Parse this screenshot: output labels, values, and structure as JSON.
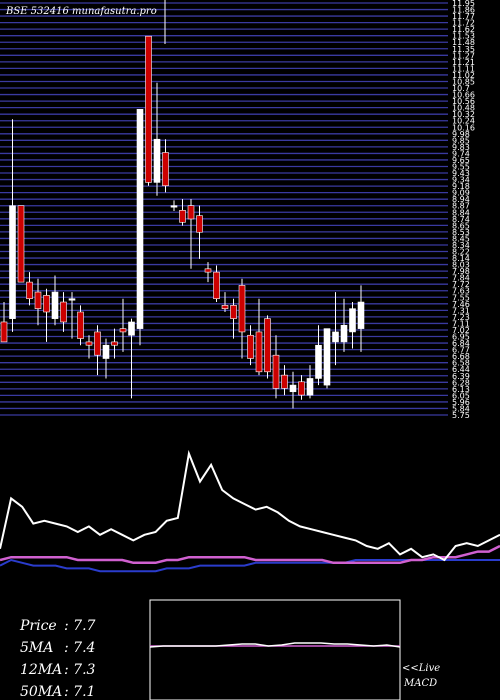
{
  "header": {
    "title": "BSE 532416  munafasutra.pro"
  },
  "chart_data": [
    {
      "type": "candlestick",
      "title": "BSE 532416  munafasutra.pro",
      "ylim": [
        5.75,
        11.95
      ],
      "price_tick_labels": [
        "11.95",
        "11.86",
        "11.77",
        "11.72",
        "11.62",
        "11.53",
        "11.48",
        "11.35",
        "11.27",
        "11.21",
        "11.11",
        "11.02",
        "10.85",
        "10.7",
        "10.66",
        "10.56",
        "10.48",
        "10.32",
        "10.24",
        "10.16",
        "9.98",
        "9.85",
        "9.83",
        "9.74",
        "9.65",
        "9.55",
        "9.43",
        "9.34",
        "9.18",
        "9.09",
        "8.94",
        "8.87",
        "8.84",
        "8.74",
        "8.65",
        "8.53",
        "8.45",
        "8.34",
        "8.22",
        "8.14",
        "8.03",
        "7.98",
        "7.84",
        "7.72",
        "7.63",
        "7.55",
        "7.46",
        "7.31",
        "7.23",
        "7.11",
        "7.02",
        "6.95",
        "6.84",
        "6.77",
        "6.68",
        "6.58",
        "6.44",
        "6.39",
        "6.28",
        "6.13",
        "6.05",
        "5.96",
        "5.84",
        "5.75"
      ],
      "candles": [
        {
          "o": 7.15,
          "h": 7.45,
          "l": 6.85,
          "c": 6.85
        },
        {
          "o": 7.2,
          "h": 10.2,
          "l": 7.0,
          "c": 8.9
        },
        {
          "o": 8.9,
          "h": 8.9,
          "l": 7.75,
          "c": 7.75
        },
        {
          "o": 7.75,
          "h": 7.9,
          "l": 7.4,
          "c": 7.5
        },
        {
          "o": 7.6,
          "h": 7.8,
          "l": 7.1,
          "c": 7.35
        },
        {
          "o": 7.55,
          "h": 7.65,
          "l": 6.85,
          "c": 7.3
        },
        {
          "o": 7.2,
          "h": 7.85,
          "l": 7.1,
          "c": 7.6
        },
        {
          "o": 7.45,
          "h": 7.6,
          "l": 7.0,
          "c": 7.15
        },
        {
          "o": 7.5,
          "h": 7.6,
          "l": 6.9,
          "c": 7.5
        },
        {
          "o": 7.3,
          "h": 7.4,
          "l": 6.8,
          "c": 6.9
        },
        {
          "o": 6.85,
          "h": 6.95,
          "l": 6.6,
          "c": 6.8
        },
        {
          "o": 7.0,
          "h": 7.1,
          "l": 6.35,
          "c": 6.65
        },
        {
          "o": 6.6,
          "h": 6.9,
          "l": 6.3,
          "c": 6.8
        },
        {
          "o": 6.85,
          "h": 7.05,
          "l": 6.6,
          "c": 6.8
        },
        {
          "o": 7.05,
          "h": 7.5,
          "l": 6.7,
          "c": 7.0
        },
        {
          "o": 6.95,
          "h": 7.2,
          "l": 6.0,
          "c": 7.15
        },
        {
          "o": 7.05,
          "h": 10.35,
          "l": 6.8,
          "c": 10.35
        },
        {
          "o": 11.45,
          "h": 11.45,
          "l": 9.2,
          "c": 9.25
        },
        {
          "o": 9.25,
          "h": 10.75,
          "l": 9.05,
          "c": 9.9
        },
        {
          "o": 9.7,
          "h": 9.9,
          "l": 9.1,
          "c": 9.2
        },
        {
          "o": 8.88,
          "h": 8.98,
          "l": 8.82,
          "c": 8.9
        },
        {
          "o": 8.83,
          "h": 9.0,
          "l": 8.6,
          "c": 8.65
        },
        {
          "o": 8.9,
          "h": 9.0,
          "l": 7.95,
          "c": 8.7
        },
        {
          "o": 8.75,
          "h": 8.9,
          "l": 8.1,
          "c": 8.5
        },
        {
          "o": 7.95,
          "h": 8.05,
          "l": 7.75,
          "c": 7.9
        },
        {
          "o": 7.9,
          "h": 8.0,
          "l": 7.45,
          "c": 7.5
        },
        {
          "o": 7.4,
          "h": 7.6,
          "l": 7.3,
          "c": 7.35
        },
        {
          "o": 7.4,
          "h": 7.5,
          "l": 6.9,
          "c": 7.2
        },
        {
          "o": 7.7,
          "h": 7.8,
          "l": 6.6,
          "c": 7.0
        },
        {
          "o": 6.95,
          "h": 7.1,
          "l": 6.5,
          "c": 6.6
        },
        {
          "o": 7.0,
          "h": 7.5,
          "l": 6.35,
          "c": 6.4
        },
        {
          "o": 7.2,
          "h": 7.25,
          "l": 6.3,
          "c": 6.4
        },
        {
          "o": 6.65,
          "h": 6.95,
          "l": 6.0,
          "c": 6.15
        },
        {
          "o": 6.35,
          "h": 6.5,
          "l": 6.05,
          "c": 6.15
        },
        {
          "o": 6.1,
          "h": 6.4,
          "l": 5.85,
          "c": 6.2
        },
        {
          "o": 6.25,
          "h": 6.35,
          "l": 5.98,
          "c": 6.05
        },
        {
          "o": 6.05,
          "h": 6.5,
          "l": 6.0,
          "c": 6.3
        },
        {
          "o": 6.3,
          "h": 7.1,
          "l": 6.2,
          "c": 6.8
        },
        {
          "o": 6.2,
          "h": 7.0,
          "l": 6.15,
          "c": 7.05
        },
        {
          "o": 6.85,
          "h": 7.6,
          "l": 6.5,
          "c": 7.0
        },
        {
          "o": 6.85,
          "h": 7.5,
          "l": 6.7,
          "c": 7.1
        },
        {
          "o": 7.0,
          "h": 7.45,
          "l": 6.75,
          "c": 7.35
        },
        {
          "o": 7.05,
          "h": 7.7,
          "l": 6.7,
          "c": 7.45
        }
      ]
    },
    {
      "type": "line",
      "series": [
        {
          "values": [
            54,
            72,
            69,
            63,
            64,
            63,
            62,
            60,
            62,
            59,
            61,
            59,
            57,
            59,
            60,
            64,
            65,
            88,
            78,
            84,
            75,
            72,
            70,
            68,
            69,
            67,
            64,
            62,
            61,
            60,
            59,
            58,
            57,
            55,
            54,
            56,
            52,
            54,
            51,
            52,
            50,
            55,
            56,
            55,
            57,
            59
          ]
        },
        {
          "values": [
            50,
            51,
            51,
            51,
            51,
            51,
            51,
            50,
            50,
            50,
            50,
            50,
            49,
            49,
            49,
            50,
            50,
            51,
            51,
            51,
            51,
            51,
            51,
            50,
            50,
            50,
            50,
            50,
            50,
            50,
            49,
            49,
            49,
            49,
            49,
            49,
            49,
            50,
            50,
            51,
            51,
            51,
            52,
            53,
            53,
            55
          ]
        },
        {
          "values": [
            48,
            50,
            49,
            48,
            48,
            48,
            47,
            47,
            47,
            46,
            46,
            46,
            46,
            46,
            46,
            47,
            47,
            47,
            48,
            48,
            48,
            48,
            48,
            49,
            49,
            49,
            49,
            49,
            49,
            49,
            49,
            49,
            50,
            50,
            50,
            50,
            50,
            50,
            50,
            50,
            50,
            50,
            50,
            50,
            50,
            50
          ]
        }
      ]
    },
    {
      "type": "line",
      "title": "MACD",
      "series": [
        {
          "values": [
            53,
            54,
            54,
            54,
            54,
            54,
            55,
            56,
            56,
            54,
            55,
            57,
            57,
            57,
            56,
            56,
            55,
            54,
            55,
            53
          ]
        },
        {
          "values": [
            54,
            54,
            54,
            54,
            54,
            54,
            54,
            54,
            54,
            54,
            54,
            54,
            54,
            54,
            54,
            54,
            54,
            54,
            54,
            54
          ]
        }
      ]
    }
  ],
  "stats": {
    "price_label": "Price",
    "price_value": ": 7.7",
    "ma5_label": "5MA",
    "ma5_value": ": 7.4",
    "ma12_label": "12MA",
    "ma12_value": ": 7.3",
    "ma50_label": "50MA",
    "ma50_value": ": 7.1"
  },
  "macd": {
    "live_label": "<<Live",
    "macd_label": "MACD"
  },
  "colors": {
    "background": "#000000",
    "gridline": "#3a3aa0",
    "bear": "#cc0000",
    "bull": "#ffffff",
    "ma_magenta": "#d060d0",
    "ma_blue": "#2a3ccc",
    "rsi_white": "#ffffff"
  }
}
